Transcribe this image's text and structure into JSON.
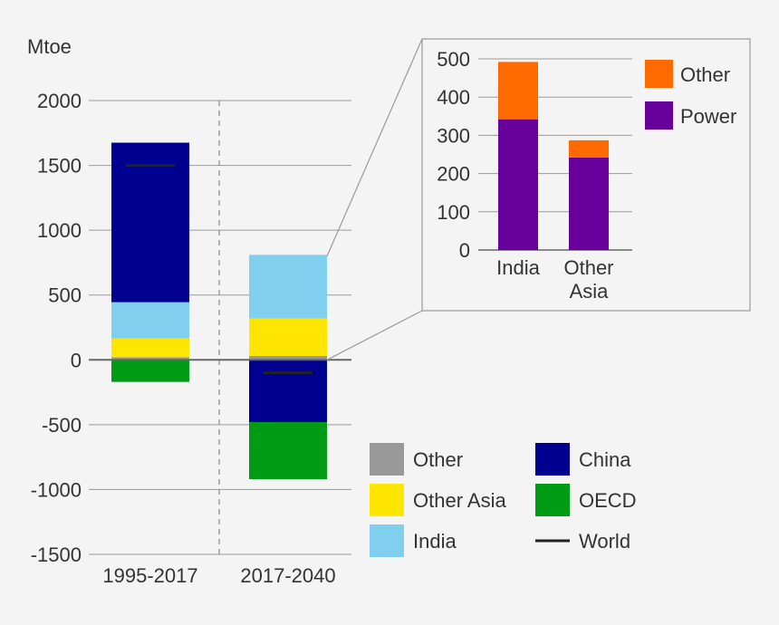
{
  "chart_data": [
    {
      "type": "bar",
      "stacked": true,
      "unit_label": "Mtoe",
      "categories": [
        "1995-2017",
        "2017-2040"
      ],
      "ylim": [
        -1500,
        2000
      ],
      "yticks": [
        2000,
        1500,
        1000,
        500,
        0,
        -500,
        -1000,
        -1500
      ],
      "ytick_labels": [
        "2000",
        "1500",
        "1000",
        "500",
        "0",
        "-500",
        "-1000",
        "-1500"
      ],
      "series": [
        {
          "name": "Other",
          "color": "#999999",
          "values": [
            20,
            30
          ]
        },
        {
          "name": "Other Asia",
          "color": "#ffe600",
          "values": [
            145,
            290
          ]
        },
        {
          "name": "India",
          "color": "#80cfee",
          "values": [
            280,
            490
          ]
        },
        {
          "name": "China",
          "color": "#000090",
          "values": [
            1230,
            -480
          ]
        },
        {
          "name": "OECD",
          "color": "#009b14",
          "values": [
            -170,
            -440
          ]
        }
      ],
      "world": {
        "name": "World",
        "color": "#222222",
        "values": [
          1500,
          -100
        ]
      },
      "legend": [
        {
          "label": "Other",
          "color": "#999999",
          "kind": "box"
        },
        {
          "label": "China",
          "color": "#000090",
          "kind": "box"
        },
        {
          "label": "Other Asia",
          "color": "#ffe600",
          "kind": "box"
        },
        {
          "label": "OECD",
          "color": "#009b14",
          "kind": "box"
        },
        {
          "label": "India",
          "color": "#80cfee",
          "kind": "box"
        },
        {
          "label": "World",
          "color": "#222222",
          "kind": "line"
        }
      ],
      "legend_placement": "bottom-right",
      "divider": "dashed line between categories"
    },
    {
      "type": "bar",
      "stacked": true,
      "inset": true,
      "categories": [
        "India",
        "Other Asia"
      ],
      "category_lines": [
        [
          "India"
        ],
        [
          "Other",
          "Asia"
        ]
      ],
      "ylim": [
        0,
        500
      ],
      "yticks": [
        500,
        400,
        300,
        200,
        100,
        0
      ],
      "ytick_labels": [
        "500",
        "400",
        "300",
        "200",
        "100",
        "0"
      ],
      "series": [
        {
          "name": "Power",
          "color": "#68009b",
          "values": [
            342,
            242
          ]
        },
        {
          "name": "Other",
          "color": "#ff6a00",
          "values": [
            150,
            45
          ]
        }
      ],
      "legend": [
        {
          "label": "Other",
          "color": "#ff6a00"
        },
        {
          "label": "Power",
          "color": "#68009b"
        }
      ],
      "legend_placement": "top-right"
    }
  ]
}
